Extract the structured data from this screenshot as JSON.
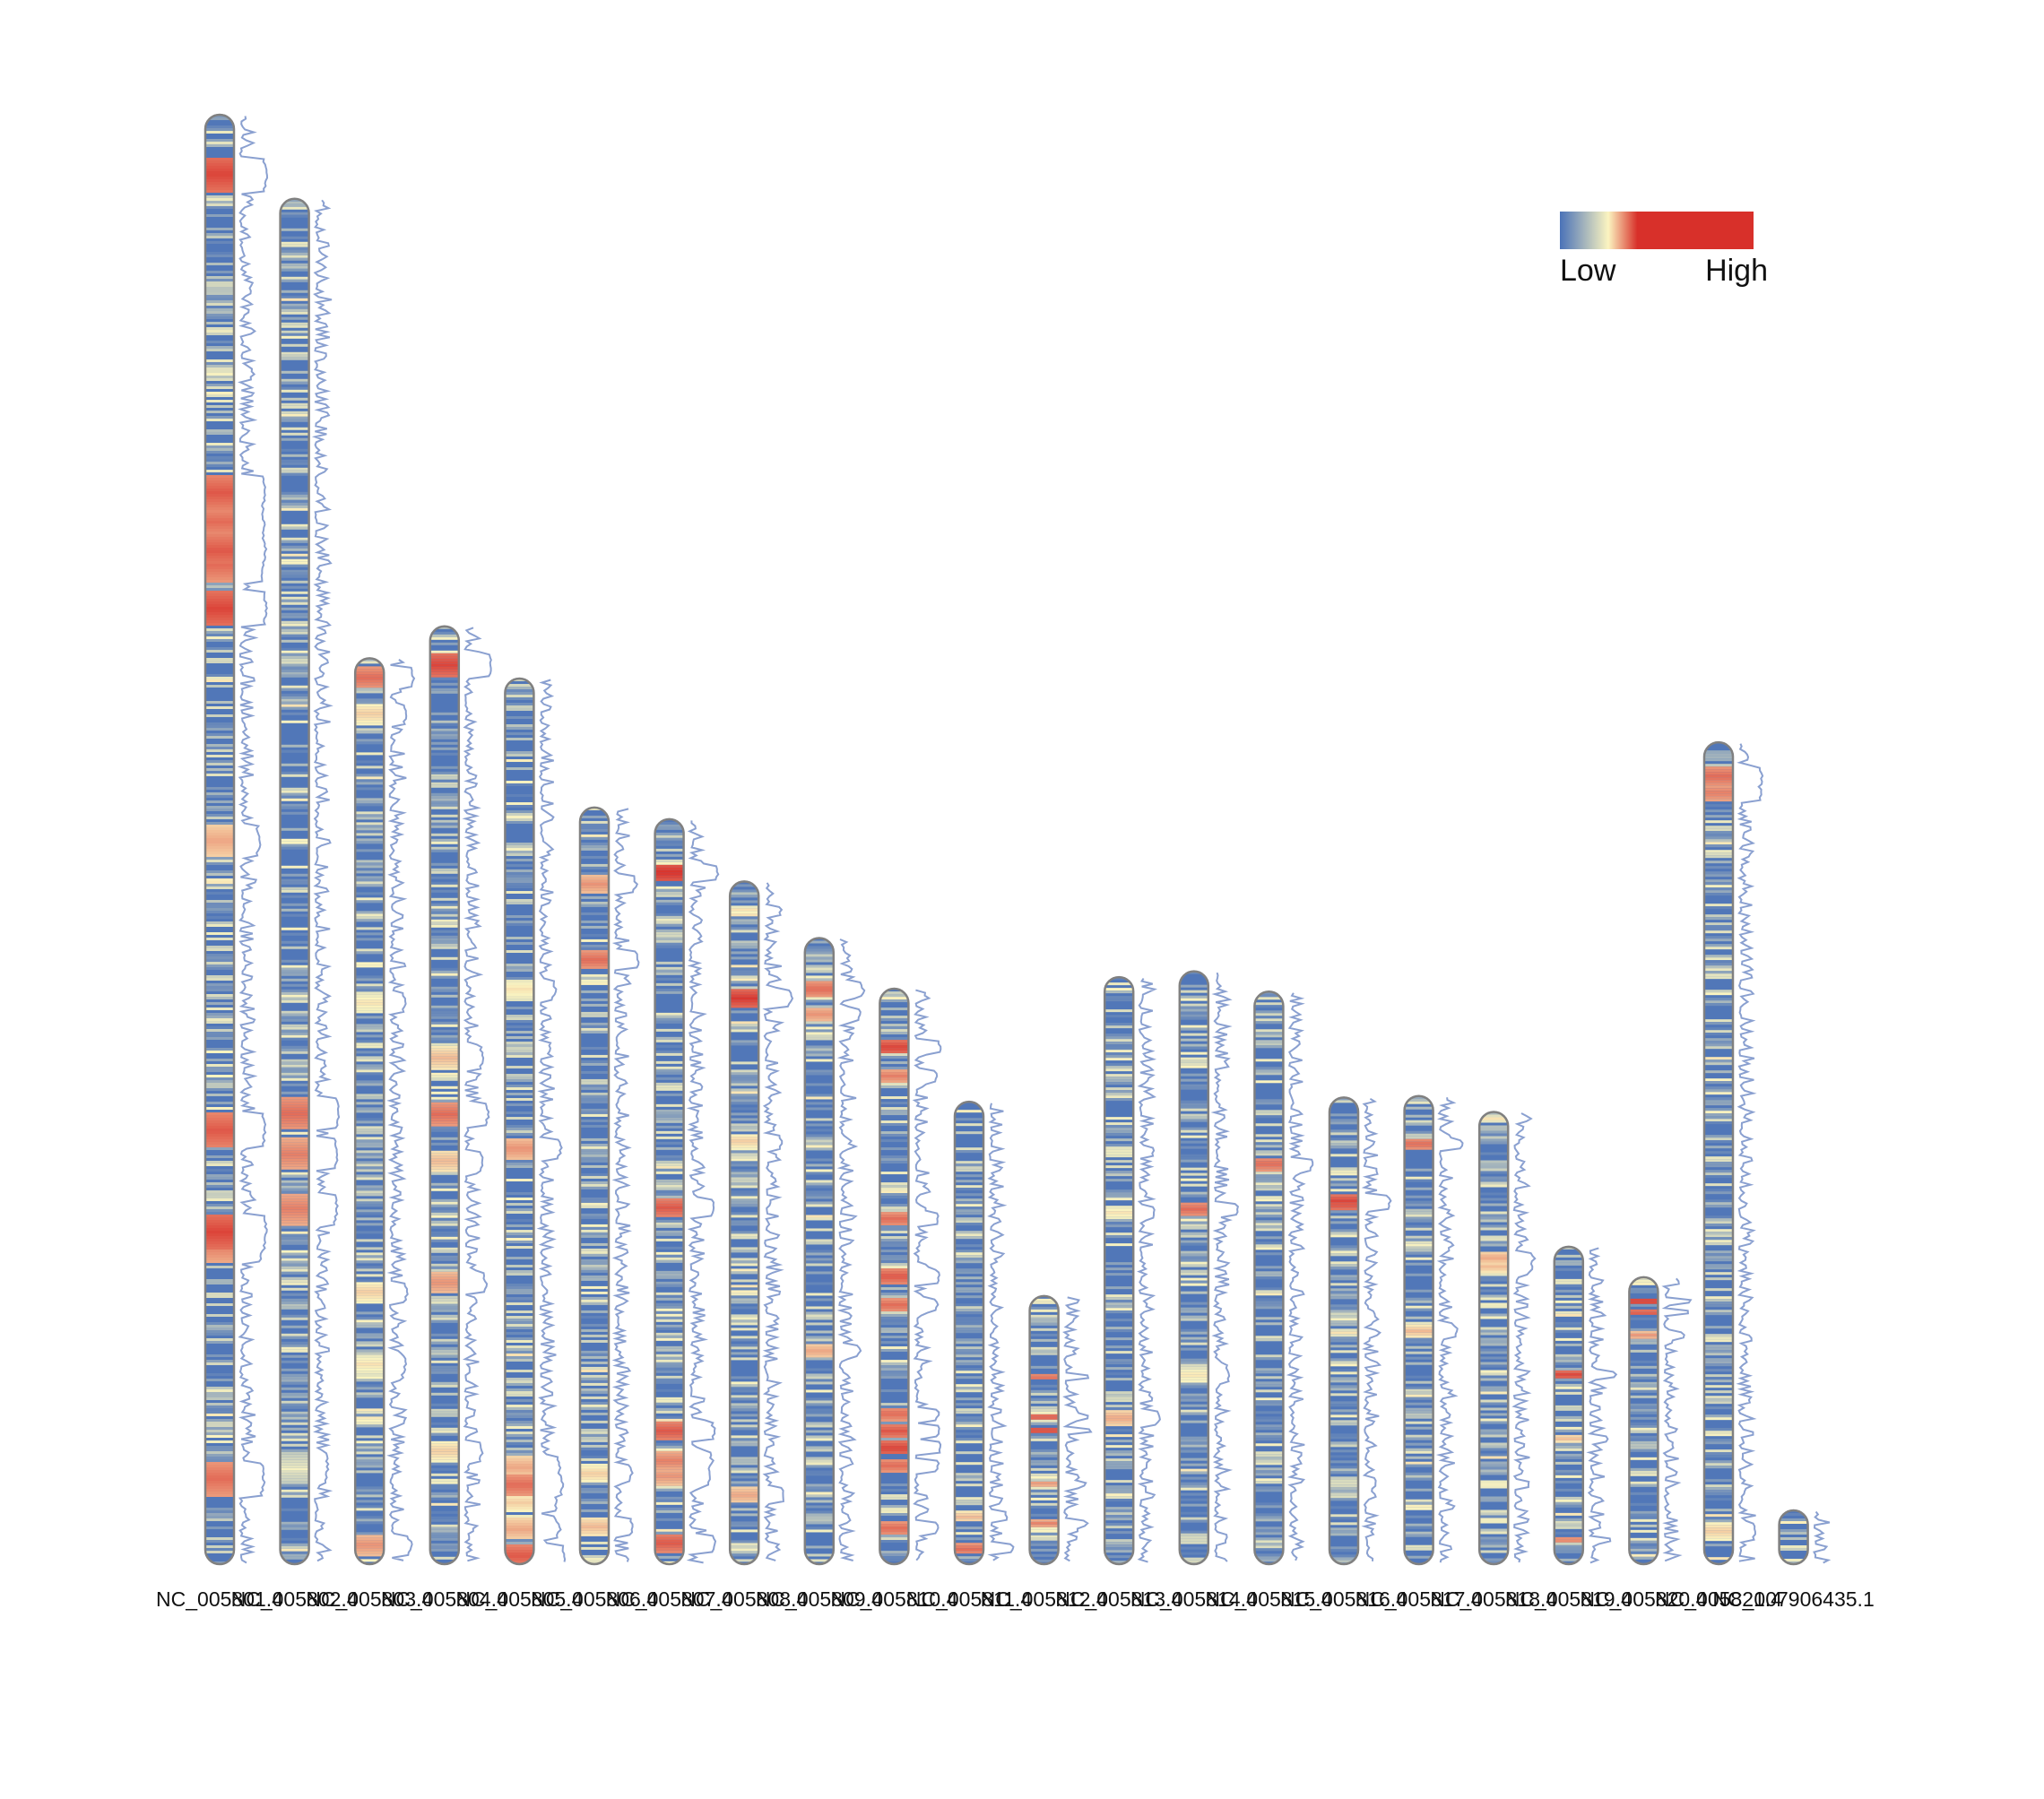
{
  "chart_data": {
    "type": "heatmap",
    "subtype": "chromosome-density-ideogram",
    "legend": {
      "low_label": "Low",
      "high_label": "High",
      "placement": "top-right",
      "colors": [
        "#4a72b8",
        "#fbf4c0",
        "#d8302a"
      ]
    },
    "outline_color": "#808080",
    "profile_color": "#8aa0d0",
    "length_unit": "relative",
    "chromosomes": [
      {
        "name": "NC_005801.4",
        "label": "NC_005801.4",
        "length": 100,
        "hotspots": [
          [
            4,
            0.95
          ],
          [
            26,
            0.9
          ],
          [
            28,
            0.85
          ],
          [
            30,
            0.9
          ],
          [
            31,
            0.85
          ],
          [
            34,
            0.95
          ],
          [
            50,
            0.7
          ],
          [
            70,
            0.9
          ],
          [
            77,
            0.95
          ],
          [
            78,
            0.8
          ],
          [
            94,
            0.85
          ]
        ]
      },
      {
        "name": "NC_005802.4",
        "label": "NC_005802.4",
        "length": 94.2,
        "hotspots": [
          [
            67,
            0.85
          ],
          [
            70,
            0.8
          ],
          [
            74,
            0.8
          ],
          [
            93,
            0.45
          ]
        ]
      },
      {
        "name": "NC_005803.4",
        "label": "NC_005803.4",
        "length": 62.5,
        "hotspots": [
          [
            2,
            0.85
          ],
          [
            6,
            0.6
          ],
          [
            38,
            0.55
          ],
          [
            70,
            0.6
          ],
          [
            78,
            0.55
          ],
          [
            98,
            0.75
          ]
        ]
      },
      {
        "name": "NC_005804.4",
        "label": "NC_005804.4",
        "length": 64.7,
        "hotspots": [
          [
            4,
            0.95
          ],
          [
            46,
            0.65
          ],
          [
            52,
            0.85
          ],
          [
            57,
            0.65
          ],
          [
            70,
            0.75
          ],
          [
            88,
            0.6
          ]
        ]
      },
      {
        "name": "NC_005805.4",
        "label": "NC_005805.4",
        "length": 61.1,
        "hotspots": [
          [
            35,
            0.55
          ],
          [
            53,
            0.75
          ],
          [
            89,
            0.7
          ],
          [
            91,
            0.85
          ],
          [
            93,
            0.6
          ],
          [
            96,
            0.7
          ],
          [
            99,
            0.9
          ]
        ]
      },
      {
        "name": "NC_005806.4",
        "label": "NC_005806.4",
        "length": 52.2,
        "hotspots": [
          [
            10,
            0.75
          ],
          [
            20,
            0.85
          ],
          [
            88,
            0.6
          ],
          [
            95,
            0.65
          ]
        ]
      },
      {
        "name": "NC_005807.4",
        "label": "NC_005807.4",
        "length": 51.4,
        "hotspots": [
          [
            7,
            1.0
          ],
          [
            52,
            0.9
          ],
          [
            82,
            0.9
          ],
          [
            86,
            0.8
          ],
          [
            88,
            0.75
          ],
          [
            97,
            0.9
          ]
        ]
      },
      {
        "name": "NC_005808.4",
        "label": "NC_005808.4",
        "length": 47.1,
        "hotspots": [
          [
            17,
            0.98
          ],
          [
            38,
            0.6
          ],
          [
            90,
            0.7
          ]
        ]
      },
      {
        "name": "NC_005809.4",
        "label": "NC_005809.4",
        "length": 43.2,
        "hotspots": [
          [
            8,
            0.85
          ],
          [
            12,
            0.75
          ],
          [
            66,
            0.7
          ]
        ]
      },
      {
        "name": "NC_005810.4",
        "label": "NC_005810.4",
        "length": 39.7,
        "hotspots": [
          [
            10,
            0.95
          ],
          [
            15,
            0.8
          ],
          [
            40,
            0.85
          ],
          [
            50,
            0.9
          ],
          [
            55,
            0.85
          ],
          [
            74,
            0.85
          ],
          [
            77,
            0.9
          ],
          [
            80,
            0.95
          ],
          [
            83,
            0.85
          ],
          [
            94,
            0.85
          ]
        ]
      },
      {
        "name": "NC_005811.4",
        "label": "NC_005811.4",
        "length": 31.9,
        "hotspots": [
          [
            90,
            0.65
          ],
          [
            97,
            0.85
          ]
        ]
      },
      {
        "name": "NC_005812.4",
        "label": "NC_005812.4",
        "length": 18.5,
        "hotspots": [
          [
            30,
            0.85
          ],
          [
            45,
            0.9
          ],
          [
            50,
            0.95
          ],
          [
            70,
            0.75
          ],
          [
            85,
            0.8
          ]
        ]
      },
      {
        "name": "NC_005813.4",
        "label": "NC_005813.4",
        "length": 40.5,
        "hotspots": [
          [
            40,
            0.55
          ],
          [
            75,
            0.7
          ]
        ]
      },
      {
        "name": "NC_005814.4",
        "label": "NC_005814.4",
        "length": 40.9,
        "hotspots": [
          [
            40,
            0.85
          ],
          [
            68,
            0.55
          ]
        ]
      },
      {
        "name": "NC_005815.4",
        "label": "NC_005815.4",
        "length": 39.5,
        "hotspots": [
          [
            30,
            0.85
          ]
        ]
      },
      {
        "name": "NC_005816.4",
        "label": "NC_005816.4",
        "length": 32.2,
        "hotspots": [
          [
            22,
            0.95
          ],
          [
            23,
            0.9
          ]
        ]
      },
      {
        "name": "NC_005817.4",
        "label": "NC_005817.4",
        "length": 32.3,
        "hotspots": [
          [
            10,
            0.85
          ],
          [
            50,
            0.65
          ]
        ]
      },
      {
        "name": "NC_005818.4",
        "label": "NC_005818.4",
        "length": 31.2,
        "hotspots": [
          [
            32,
            0.7
          ],
          [
            34,
            0.65
          ]
        ]
      },
      {
        "name": "NC_005819.4",
        "label": "NC_005819.4",
        "length": 21.9,
        "hotspots": [
          [
            40,
            0.95
          ],
          [
            60,
            0.65
          ],
          [
            92,
            0.8
          ]
        ]
      },
      {
        "name": "NC_005820.4",
        "label": "NC_005820.4",
        "length": 19.8,
        "hotspots": [
          [
            8,
            0.98
          ],
          [
            12,
            0.9
          ],
          [
            20,
            0.75
          ]
        ]
      },
      {
        "name": "NC_005821.4",
        "label": "NC_005821.4",
        "length": 56.7,
        "hotspots": [
          [
            4,
            0.85
          ],
          [
            6,
            0.8
          ],
          [
            96,
            0.6
          ]
        ]
      },
      {
        "name": "NC_007906435.1",
        "label": "NC_007906435.1",
        "length": 3.6,
        "hotspots": []
      }
    ]
  }
}
